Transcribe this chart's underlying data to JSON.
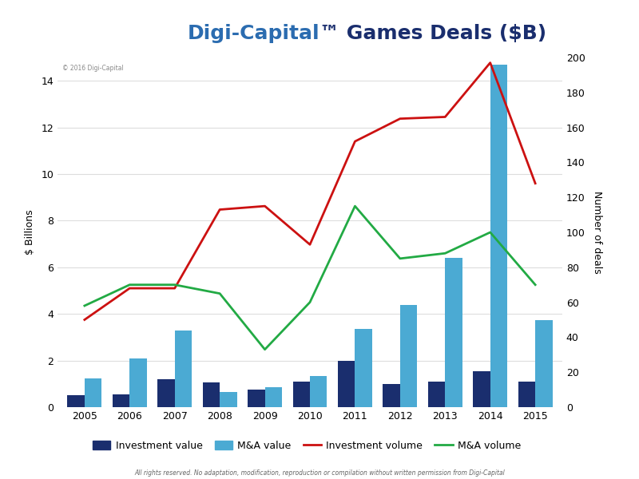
{
  "years": [
    2005,
    2006,
    2007,
    2008,
    2009,
    2010,
    2011,
    2012,
    2013,
    2014,
    2015
  ],
  "investment_value": [
    0.5,
    0.55,
    1.2,
    1.05,
    0.75,
    1.1,
    2.0,
    1.0,
    1.1,
    1.55,
    1.1
  ],
  "ma_value": [
    1.25,
    2.1,
    3.3,
    0.65,
    0.85,
    1.35,
    3.35,
    4.4,
    6.4,
    14.7,
    3.75
  ],
  "investment_volume": [
    50,
    68,
    68,
    113,
    115,
    93,
    152,
    165,
    166,
    197,
    128
  ],
  "ma_volume": [
    58,
    70,
    70,
    65,
    33,
    60,
    115,
    85,
    88,
    100,
    70
  ],
  "ylabel_left": "$ Billions",
  "ylabel_right": "Number of deals",
  "ylim_left": [
    0,
    15
  ],
  "ylim_right": [
    0,
    200
  ],
  "yticks_left": [
    0,
    2,
    4,
    6,
    8,
    10,
    12,
    14
  ],
  "yticks_right": [
    0,
    20,
    40,
    60,
    80,
    100,
    120,
    140,
    160,
    180,
    200
  ],
  "investment_value_color": "#1a2e6e",
  "ma_value_color": "#4baad3",
  "investment_volume_color": "#cc1111",
  "ma_volume_color": "#22aa44",
  "background_color": "#ffffff",
  "plot_bg_color": "#ffffff",
  "grid_color": "#dddddd",
  "watermark": "© 2016 Digi-Capital",
  "footer": "All rights reserved. No adaptation, modification, reproduction or compilation without written permission from Digi-Capital",
  "bar_width": 0.38,
  "title_blue": "Digi-Capital",
  "title_tm": "™",
  "title_black": " Games Deals ($B)",
  "title_fontsize": 18,
  "tick_fontsize": 9,
  "label_fontsize": 9,
  "legend_fontsize": 9
}
